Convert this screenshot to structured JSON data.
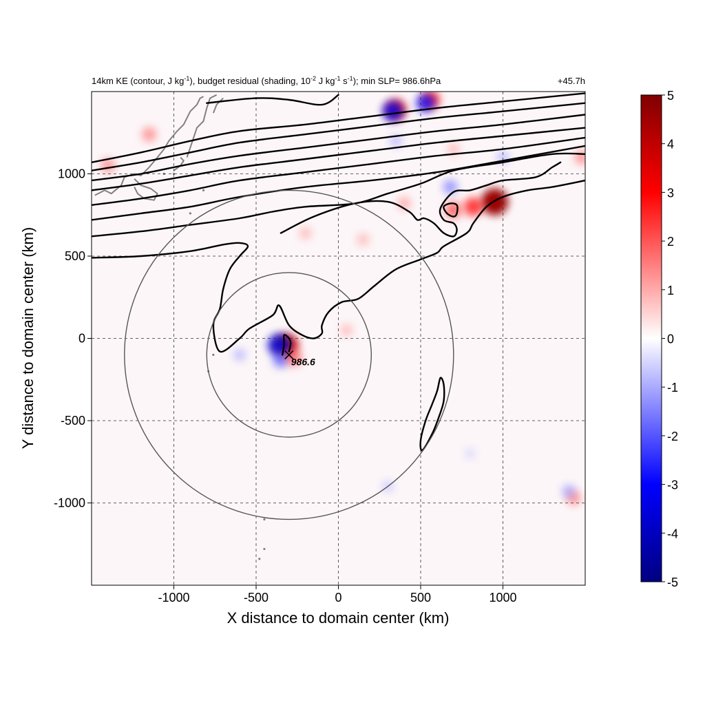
{
  "chart_data": {
    "type": "heatmap",
    "title_left": "14km KE (contour, J kg",
    "title_right": "+45.7h",
    "title_parts": {
      "p1": "14km KE (contour, J kg",
      "s1": "-1",
      "p2": "), budget residual (shading, 10",
      "s2": "-2",
      "p3": " J kg",
      "s3": "-1",
      "p4": " s",
      "s4": "-1",
      "p5": "); min SLP= 986.6hPa"
    },
    "xlabel": "X distance to domain center (km)",
    "ylabel": "Y distance to domain center (km)",
    "xlim": [
      -1500,
      1500
    ],
    "ylim": [
      -1500,
      1500
    ],
    "x_ticks": [
      -1000,
      -500,
      0,
      500,
      1000
    ],
    "x_tick_labels": [
      "-1000",
      "-500",
      "0",
      "500",
      "1000"
    ],
    "y_ticks": [
      -1000,
      -500,
      0,
      500,
      1000
    ],
    "y_tick_labels": [
      "-1000",
      "-500",
      "0",
      "500",
      "1000"
    ],
    "grid": true,
    "colorbar": {
      "range": [
        -5,
        5
      ],
      "ticks": [
        5,
        4,
        3,
        2,
        1,
        0,
        -1,
        -2,
        -3,
        -4,
        -5
      ],
      "tick_labels": [
        "5",
        "4",
        "3",
        "2",
        "1",
        "0",
        "-1",
        "-2",
        "-3",
        "-4",
        "-5"
      ],
      "colors": [
        "#000080",
        "#0000ff",
        "#ffffff",
        "#ff0000",
        "#800000"
      ]
    },
    "storm_center": {
      "x": -300,
      "y": -100,
      "label": "986.6"
    },
    "range_rings": [
      {
        "center_x": -300,
        "center_y": -100,
        "radius_km": 500
      },
      {
        "center_x": -300,
        "center_y": -100,
        "radius_km": 1000
      }
    ],
    "hotspots": [
      {
        "x": 950,
        "y": 830,
        "value": 4.5
      },
      {
        "x": 820,
        "y": 800,
        "value": 2.5
      },
      {
        "x": 700,
        "y": 780,
        "value": 2.0
      },
      {
        "x": 350,
        "y": 1390,
        "value": 3.0
      },
      {
        "x": 330,
        "y": 1380,
        "value": -3.0
      },
      {
        "x": 560,
        "y": 1450,
        "value": 2.5
      },
      {
        "x": 530,
        "y": 1430,
        "value": -2.5
      },
      {
        "x": 680,
        "y": 920,
        "value": -1.5
      },
      {
        "x": -310,
        "y": -40,
        "value": 3.5
      },
      {
        "x": -360,
        "y": -40,
        "value": -3.5
      },
      {
        "x": -350,
        "y": -130,
        "value": -1.8
      },
      {
        "x": -270,
        "y": -120,
        "value": 1.8
      },
      {
        "x": -1150,
        "y": 1240,
        "value": 1.5
      },
      {
        "x": -1400,
        "y": 1050,
        "value": 1.5
      },
      {
        "x": -200,
        "y": 640,
        "value": 1.0
      },
      {
        "x": 150,
        "y": 600,
        "value": 1.0
      },
      {
        "x": 400,
        "y": 820,
        "value": 1.2
      },
      {
        "x": 1430,
        "y": -970,
        "value": 1.5
      },
      {
        "x": 1400,
        "y": -930,
        "value": -1.2
      },
      {
        "x": 350,
        "y": 1200,
        "value": -1.0
      },
      {
        "x": 700,
        "y": 1150,
        "value": 1.0
      },
      {
        "x": 1000,
        "y": 1100,
        "value": -1.0
      },
      {
        "x": 1480,
        "y": 1100,
        "value": 1.5
      },
      {
        "x": -600,
        "y": -100,
        "value": -1.0
      },
      {
        "x": 50,
        "y": 50,
        "value": 1.0
      },
      {
        "x": 300,
        "y": -900,
        "value": -0.8
      },
      {
        "x": 800,
        "y": -700,
        "value": -0.6
      }
    ],
    "contours": [
      {
        "name": "ke-contour-top-1",
        "points": [
          [
            -800,
            1430
          ],
          [
            -500,
            1460
          ],
          [
            -300,
            1450
          ],
          [
            -100,
            1420
          ],
          [
            0,
            1480
          ]
        ]
      },
      {
        "name": "ke-contour-top-2",
        "points": [
          [
            -1500,
            1070
          ],
          [
            -1200,
            1130
          ],
          [
            -900,
            1200
          ],
          [
            -600,
            1260
          ],
          [
            -200,
            1300
          ],
          [
            200,
            1350
          ],
          [
            600,
            1400
          ],
          [
            1000,
            1440
          ],
          [
            1500,
            1490
          ]
        ]
      },
      {
        "name": "ke-contour-top-3",
        "points": [
          [
            -1500,
            1020
          ],
          [
            -1200,
            1070
          ],
          [
            -900,
            1130
          ],
          [
            -600,
            1190
          ],
          [
            -200,
            1240
          ],
          [
            200,
            1290
          ],
          [
            600,
            1340
          ],
          [
            1000,
            1380
          ],
          [
            1500,
            1430
          ]
        ]
      },
      {
        "name": "ke-contour-top-4",
        "points": [
          [
            -1500,
            960
          ],
          [
            -1200,
            1000
          ],
          [
            -900,
            1060
          ],
          [
            -600,
            1110
          ],
          [
            -200,
            1160
          ],
          [
            200,
            1210
          ],
          [
            600,
            1260
          ],
          [
            1000,
            1300
          ],
          [
            1500,
            1360
          ]
        ]
      },
      {
        "name": "ke-contour-top-5",
        "points": [
          [
            -1500,
            900
          ],
          [
            -1200,
            940
          ],
          [
            -900,
            990
          ],
          [
            -600,
            1040
          ],
          [
            -200,
            1090
          ],
          [
            200,
            1140
          ],
          [
            600,
            1190
          ],
          [
            1000,
            1230
          ],
          [
            1500,
            1280
          ]
        ]
      },
      {
        "name": "ke-contour-top-6",
        "points": [
          [
            -1500,
            810
          ],
          [
            -1200,
            850
          ],
          [
            -900,
            900
          ],
          [
            -600,
            960
          ],
          [
            -200,
            1010
          ],
          [
            200,
            1060
          ],
          [
            600,
            1110
          ],
          [
            1000,
            1150
          ],
          [
            1500,
            1220
          ]
        ]
      },
      {
        "name": "ke-contour-top-7",
        "points": [
          [
            -1500,
            720
          ],
          [
            -1200,
            760
          ],
          [
            -900,
            800
          ],
          [
            -600,
            860
          ],
          [
            -200,
            920
          ],
          [
            200,
            960
          ],
          [
            600,
            1010
          ],
          [
            1000,
            1080
          ],
          [
            1500,
            1170
          ]
        ]
      },
      {
        "name": "ke-contour-top-8",
        "points": [
          [
            -1500,
            620
          ],
          [
            -1200,
            650
          ],
          [
            -900,
            690
          ],
          [
            -600,
            730
          ],
          [
            -400,
            770
          ],
          [
            -200,
            800
          ],
          [
            100,
            820
          ],
          [
            300,
            880
          ],
          [
            500,
            940
          ],
          [
            700,
            1020
          ],
          [
            1000,
            1070
          ],
          [
            1300,
            1120
          ],
          [
            1500,
            1120
          ]
        ]
      },
      {
        "name": "ke-contour-mid",
        "points": [
          [
            -1500,
            490
          ],
          [
            -1200,
            500
          ],
          [
            -900,
            530
          ],
          [
            -700,
            570
          ],
          [
            -600,
            580
          ],
          [
            -550,
            560
          ],
          [
            -600,
            500
          ],
          [
            -660,
            420
          ],
          [
            -700,
            300
          ],
          [
            -720,
            180
          ],
          [
            -760,
            80
          ],
          [
            -720,
            -80
          ],
          [
            -600,
            0
          ],
          [
            -540,
            60
          ],
          [
            -400,
            140
          ],
          [
            -360,
            200
          ],
          [
            -300,
            80
          ],
          [
            -220,
            20
          ],
          [
            -150,
            0
          ],
          [
            -100,
            30
          ],
          [
            -100,
            80
          ],
          [
            -60,
            160
          ],
          [
            20,
            220
          ],
          [
            120,
            240
          ],
          [
            220,
            320
          ],
          [
            350,
            420
          ],
          [
            500,
            480
          ],
          [
            600,
            520
          ],
          [
            640,
            560
          ],
          [
            780,
            640
          ],
          [
            820,
            700
          ],
          [
            900,
            800
          ],
          [
            1000,
            860
          ],
          [
            1150,
            900
          ],
          [
            1300,
            920
          ],
          [
            1500,
            960
          ]
        ]
      },
      {
        "name": "ke-contour-inner",
        "points": [
          [
            -350,
            640
          ],
          [
            -150,
            740
          ],
          [
            100,
            820
          ],
          [
            300,
            830
          ],
          [
            430,
            770
          ],
          [
            480,
            720
          ],
          [
            520,
            730
          ],
          [
            580,
            700
          ],
          [
            640,
            640
          ],
          [
            700,
            620
          ],
          [
            720,
            660
          ],
          [
            700,
            700
          ],
          [
            640,
            720
          ],
          [
            620,
            790
          ],
          [
            700,
            890
          ],
          [
            800,
            900
          ],
          [
            900,
            930
          ],
          [
            1000,
            960
          ],
          [
            1200,
            980
          ],
          [
            1300,
            1040
          ],
          [
            1350,
            1070
          ]
        ]
      },
      {
        "name": "ke-contour-loop",
        "closed": true,
        "points": [
          [
            640,
            800
          ],
          [
            680,
            820
          ],
          [
            720,
            810
          ],
          [
            720,
            760
          ],
          [
            700,
            740
          ],
          [
            660,
            760
          ]
        ]
      },
      {
        "name": "ke-contour-storm",
        "points": [
          [
            -340,
            -100
          ],
          [
            -330,
            -40
          ],
          [
            -330,
            20
          ],
          [
            -300,
            0
          ],
          [
            -290,
            -30
          ],
          [
            -300,
            -80
          ]
        ]
      },
      {
        "name": "ke-contour-south",
        "closed": true,
        "points": [
          [
            620,
            -240
          ],
          [
            640,
            -280
          ],
          [
            640,
            -380
          ],
          [
            610,
            -480
          ],
          [
            570,
            -580
          ],
          [
            510,
            -680
          ],
          [
            500,
            -620
          ],
          [
            530,
            -500
          ],
          [
            570,
            -400
          ],
          [
            600,
            -320
          ]
        ]
      }
    ],
    "coastline_segments": [
      [
        [
          -1480,
          870
        ],
        [
          -1420,
          900
        ],
        [
          -1380,
          880
        ],
        [
          -1320,
          930
        ],
        [
          -1300,
          980
        ],
        [
          -1240,
          1000
        ],
        [
          -1200,
          990
        ],
        [
          -1150,
          1040
        ],
        [
          -1100,
          1100
        ],
        [
          -1060,
          1150
        ],
        [
          -1030,
          1200
        ],
        [
          -980,
          1260
        ],
        [
          -940,
          1300
        ],
        [
          -900,
          1380
        ],
        [
          -860,
          1420
        ],
        [
          -840,
          1460
        ],
        [
          -820,
          1470
        ]
      ],
      [
        [
          -1240,
          970
        ],
        [
          -1200,
          930
        ],
        [
          -1140,
          910
        ],
        [
          -1100,
          880
        ],
        [
          -1120,
          840
        ],
        [
          -1180,
          850
        ],
        [
          -1220,
          880
        ],
        [
          -1240,
          920
        ]
      ],
      [
        [
          -920,
          1100
        ],
        [
          -900,
          1160
        ],
        [
          -880,
          1220
        ],
        [
          -860,
          1280
        ],
        [
          -820,
          1320
        ],
        [
          -800,
          1400
        ],
        [
          -780,
          1460
        ],
        [
          -740,
          1480
        ]
      ],
      [
        [
          -1000,
          1020
        ],
        [
          -960,
          1050
        ],
        [
          -940,
          1080
        ],
        [
          -960,
          1100
        ]
      ],
      [
        [
          -760,
          1370
        ],
        [
          -740,
          1420
        ],
        [
          -700,
          1460
        ]
      ]
    ],
    "island_dots": [
      [
        -820,
        900
      ],
      [
        -900,
        760
      ],
      [
        -760,
        -100
      ],
      [
        -790,
        -200
      ],
      [
        -450,
        -1100
      ],
      [
        -450,
        -1280
      ],
      [
        -480,
        -1340
      ],
      [
        -1000,
        1000
      ],
      [
        -1060,
        1000
      ]
    ]
  }
}
